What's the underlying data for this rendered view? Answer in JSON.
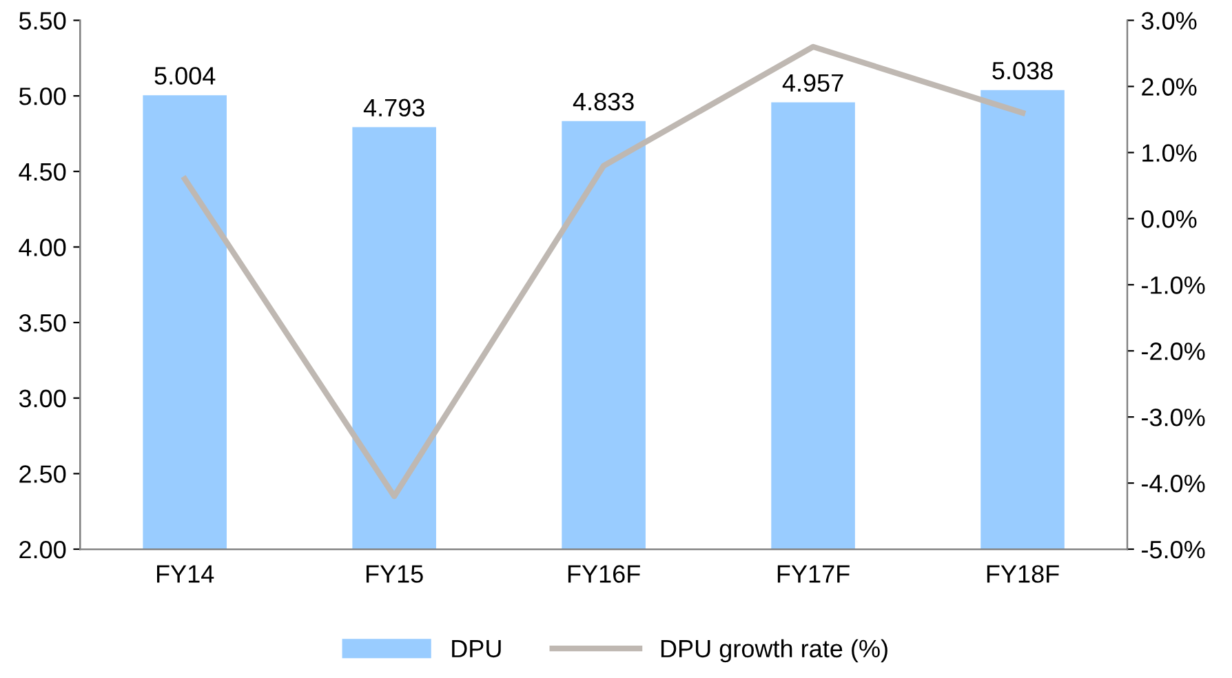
{
  "chart_data": {
    "type": "bar",
    "categories": [
      "FY14",
      "FY15",
      "FY16F",
      "FY17F",
      "FY18F"
    ],
    "series": [
      {
        "name": "DPU",
        "color": "#99ccff",
        "values": [
          5.004,
          4.793,
          4.833,
          4.957,
          5.038
        ],
        "data_labels": true
      },
      {
        "name": "DPU growth rate (%)",
        "type": "line",
        "axis": "y2",
        "color": "#bfb8b2",
        "values": [
          0.6,
          -4.2,
          0.8,
          2.6,
          1.6
        ]
      }
    ],
    "ylim": [
      2,
      5.5
    ],
    "yticks": [
      {
        "value": 2,
        "label": "2.00"
      },
      {
        "value": 2.5,
        "label": "2.50"
      },
      {
        "value": 3,
        "label": "3.00"
      },
      {
        "value": 3.5,
        "label": "3.50"
      },
      {
        "value": 4,
        "label": "4.00"
      },
      {
        "value": 4.5,
        "label": "4.50"
      },
      {
        "value": 5,
        "label": "5.00"
      },
      {
        "value": 5.5,
        "label": "5.50"
      }
    ],
    "y2lim": [
      -5,
      3
    ],
    "y2ticks": [
      {
        "value": -5,
        "label": "-5.0%"
      },
      {
        "value": -4,
        "label": "-4.0%"
      },
      {
        "value": -3,
        "label": "-3.0%"
      },
      {
        "value": -2,
        "label": "-2.0%"
      },
      {
        "value": -1,
        "label": "-1.0%"
      },
      {
        "value": 0,
        "label": "0.0%"
      },
      {
        "value": 1,
        "label": "1.0%"
      },
      {
        "value": 2,
        "label": "2.0%"
      },
      {
        "value": 3,
        "label": "3.0%"
      }
    ],
    "grid": false,
    "legend": "bottom",
    "marker": "none",
    "line_style": "solid"
  }
}
